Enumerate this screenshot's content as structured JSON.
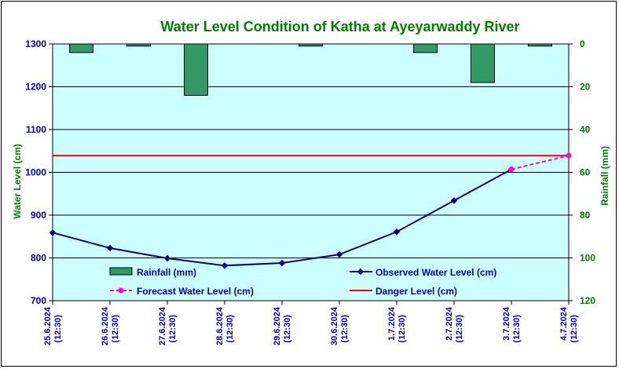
{
  "chart_data": {
    "type": "line",
    "title": "Water Level Condition of Katha at Ayeyarwaddy River",
    "ylabel_left": "Water Level (cm)",
    "ylabel_right": "Rainfall (mm)",
    "ylim_left": [
      700,
      1300
    ],
    "yticks_left": [
      "700",
      "800",
      "900",
      "1000",
      "1100",
      "1200",
      "1300"
    ],
    "ylim_right": [
      0,
      120
    ],
    "right_axis_inverted": true,
    "yticks_right": [
      "0",
      "20",
      "40",
      "60",
      "80",
      "100",
      "120"
    ],
    "categories": [
      [
        "25.6.2024",
        "(12:30)"
      ],
      [
        "26.6.2024",
        "(12:30)"
      ],
      [
        "27.6.2024",
        "(12:30)"
      ],
      [
        "28.6.2024",
        "(12:30)"
      ],
      [
        "29.6.2024",
        "(12:30)"
      ],
      [
        "30.6.2024",
        "(12:30)"
      ],
      [
        "1.7.2024",
        "(12:30)"
      ],
      [
        "2.7.2024",
        "(12:30)"
      ],
      [
        "3.7.2024",
        "(12:30)"
      ],
      [
        "4.7.2024",
        "(12:30)"
      ]
    ],
    "grid": true,
    "series": [
      {
        "name": "Rainfall (mm)",
        "kind": "bar",
        "axis": "right",
        "color": "#339966",
        "values": [
          4,
          1,
          24,
          0,
          1,
          0,
          4,
          18,
          1,
          null
        ]
      },
      {
        "name": "Observed Water Level (cm)",
        "kind": "line",
        "axis": "left",
        "color": "#000080",
        "values": [
          859,
          823,
          799,
          782,
          788,
          808,
          861,
          934,
          1007,
          null
        ]
      },
      {
        "name": "Forecast Water Level (cm)",
        "kind": "dashed-line",
        "axis": "left",
        "color": "#ff00ff",
        "values": [
          null,
          null,
          null,
          null,
          null,
          null,
          null,
          null,
          1007,
          1039
        ]
      },
      {
        "name": "Danger Level (cm)",
        "kind": "hline",
        "axis": "left",
        "color": "#ff0000",
        "value": 1039
      }
    ],
    "plot_background": "#ccffff",
    "legend_position": "bottom-inside"
  }
}
